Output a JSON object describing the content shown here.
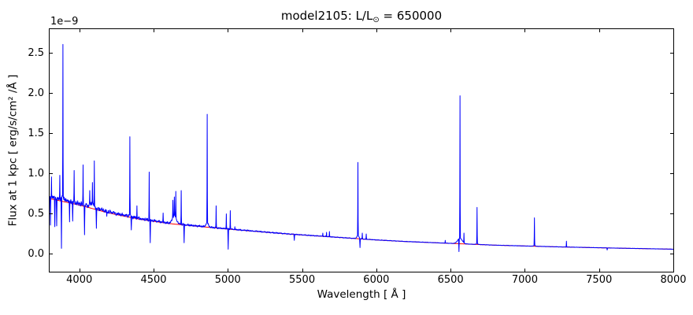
{
  "chart_data": {
    "type": "line",
    "title": "model2105: L/L⊙ = 650000",
    "title_parts": {
      "prefix": "model2105: L/L",
      "sun_symbol": "⊙",
      "suffix": " = 650000"
    },
    "offset_text": "1e−9",
    "xlabel": "Wavelength [ Å ]",
    "ylabel": "Flux at 1 kpc [ erg/s/cm² /Å ]",
    "flux_unit_scale": "1e-9",
    "xlim": [
      3800,
      8000
    ],
    "ylim": [
      -0.23,
      2.79
    ],
    "xticks": [
      4000,
      4500,
      5000,
      5500,
      6000,
      6500,
      7000,
      7500,
      8000
    ],
    "yticks": [
      0.0,
      0.5,
      1.0,
      1.5,
      2.0,
      2.5
    ],
    "grid": false,
    "legend": null,
    "colors": {
      "spectrum": "#0000ff",
      "continuum": "#ff0000",
      "axes": "#000000",
      "background": "#ffffff"
    },
    "series": [
      {
        "name": "observed-spectrum",
        "role": "spectrum",
        "color": "#0000ff"
      },
      {
        "name": "continuum-fit",
        "role": "continuum",
        "color": "#ff0000",
        "points": [
          [
            3800,
            0.68
          ],
          [
            4000,
            0.6
          ],
          [
            4200,
            0.5
          ],
          [
            4400,
            0.425
          ],
          [
            4600,
            0.37
          ],
          [
            4800,
            0.335
          ],
          [
            5000,
            0.3
          ],
          [
            5200,
            0.27
          ],
          [
            5400,
            0.24
          ],
          [
            5600,
            0.215
          ],
          [
            5800,
            0.19
          ],
          [
            6000,
            0.165
          ],
          [
            6200,
            0.145
          ],
          [
            6400,
            0.13
          ],
          [
            6600,
            0.115
          ],
          [
            6800,
            0.1
          ],
          [
            7000,
            0.09
          ],
          [
            7200,
            0.08
          ],
          [
            7400,
            0.072
          ],
          [
            7600,
            0.064
          ],
          [
            7800,
            0.057
          ],
          [
            8000,
            0.05
          ]
        ]
      }
    ],
    "emission_lines": [
      [
        3812,
        0.95
      ],
      [
        3868,
        0.97
      ],
      [
        3889,
        2.6
      ],
      [
        3965,
        1.03
      ],
      [
        4026,
        1.1
      ],
      [
        4070,
        0.78
      ],
      [
        4089,
        0.88
      ],
      [
        4101,
        1.15
      ],
      [
        4144,
        0.52
      ],
      [
        4340,
        1.45
      ],
      [
        4388,
        0.59
      ],
      [
        4471,
        1.01
      ],
      [
        4565,
        0.5
      ],
      [
        4630,
        0.66
      ],
      [
        4640,
        0.7
      ],
      [
        4650,
        0.77
      ],
      [
        4686,
        0.78
      ],
      [
        4861,
        1.73
      ],
      [
        4922,
        0.59
      ],
      [
        4990,
        0.49
      ],
      [
        5016,
        0.53
      ],
      [
        5048,
        0.33
      ],
      [
        5640,
        0.25
      ],
      [
        5665,
        0.26
      ],
      [
        5685,
        0.27
      ],
      [
        5876,
        1.13
      ],
      [
        5905,
        0.25
      ],
      [
        5932,
        0.24
      ],
      [
        6464,
        0.16
      ],
      [
        6563,
        1.96
      ],
      [
        6590,
        0.25
      ],
      [
        6678,
        0.57
      ],
      [
        7065,
        0.44
      ],
      [
        7281,
        0.15
      ]
    ],
    "absorption_lines": [
      [
        3805,
        0.35
      ],
      [
        3835,
        0.33
      ],
      [
        3847,
        0.34
      ],
      [
        3880,
        0.06
      ],
      [
        3935,
        0.39
      ],
      [
        3955,
        0.4
      ],
      [
        4035,
        0.23
      ],
      [
        4115,
        0.31
      ],
      [
        4185,
        0.46
      ],
      [
        4350,
        0.29
      ],
      [
        4477,
        0.13
      ],
      [
        4545,
        0.4
      ],
      [
        4706,
        0.13
      ],
      [
        5003,
        0.05
      ],
      [
        5448,
        0.16
      ],
      [
        5890,
        0.07
      ],
      [
        6556,
        0.02
      ],
      [
        7555,
        0.04
      ]
    ],
    "broad_components": [
      [
        3889,
        0.05,
        6
      ],
      [
        4085,
        0.05,
        10
      ],
      [
        4340,
        0.03,
        5
      ],
      [
        4640,
        0.1,
        13
      ],
      [
        4861,
        0.05,
        8
      ],
      [
        5876,
        0.04,
        7
      ],
      [
        6563,
        0.07,
        15
      ],
      [
        6678,
        0.012,
        5
      ],
      [
        7065,
        0.012,
        5
      ]
    ]
  }
}
